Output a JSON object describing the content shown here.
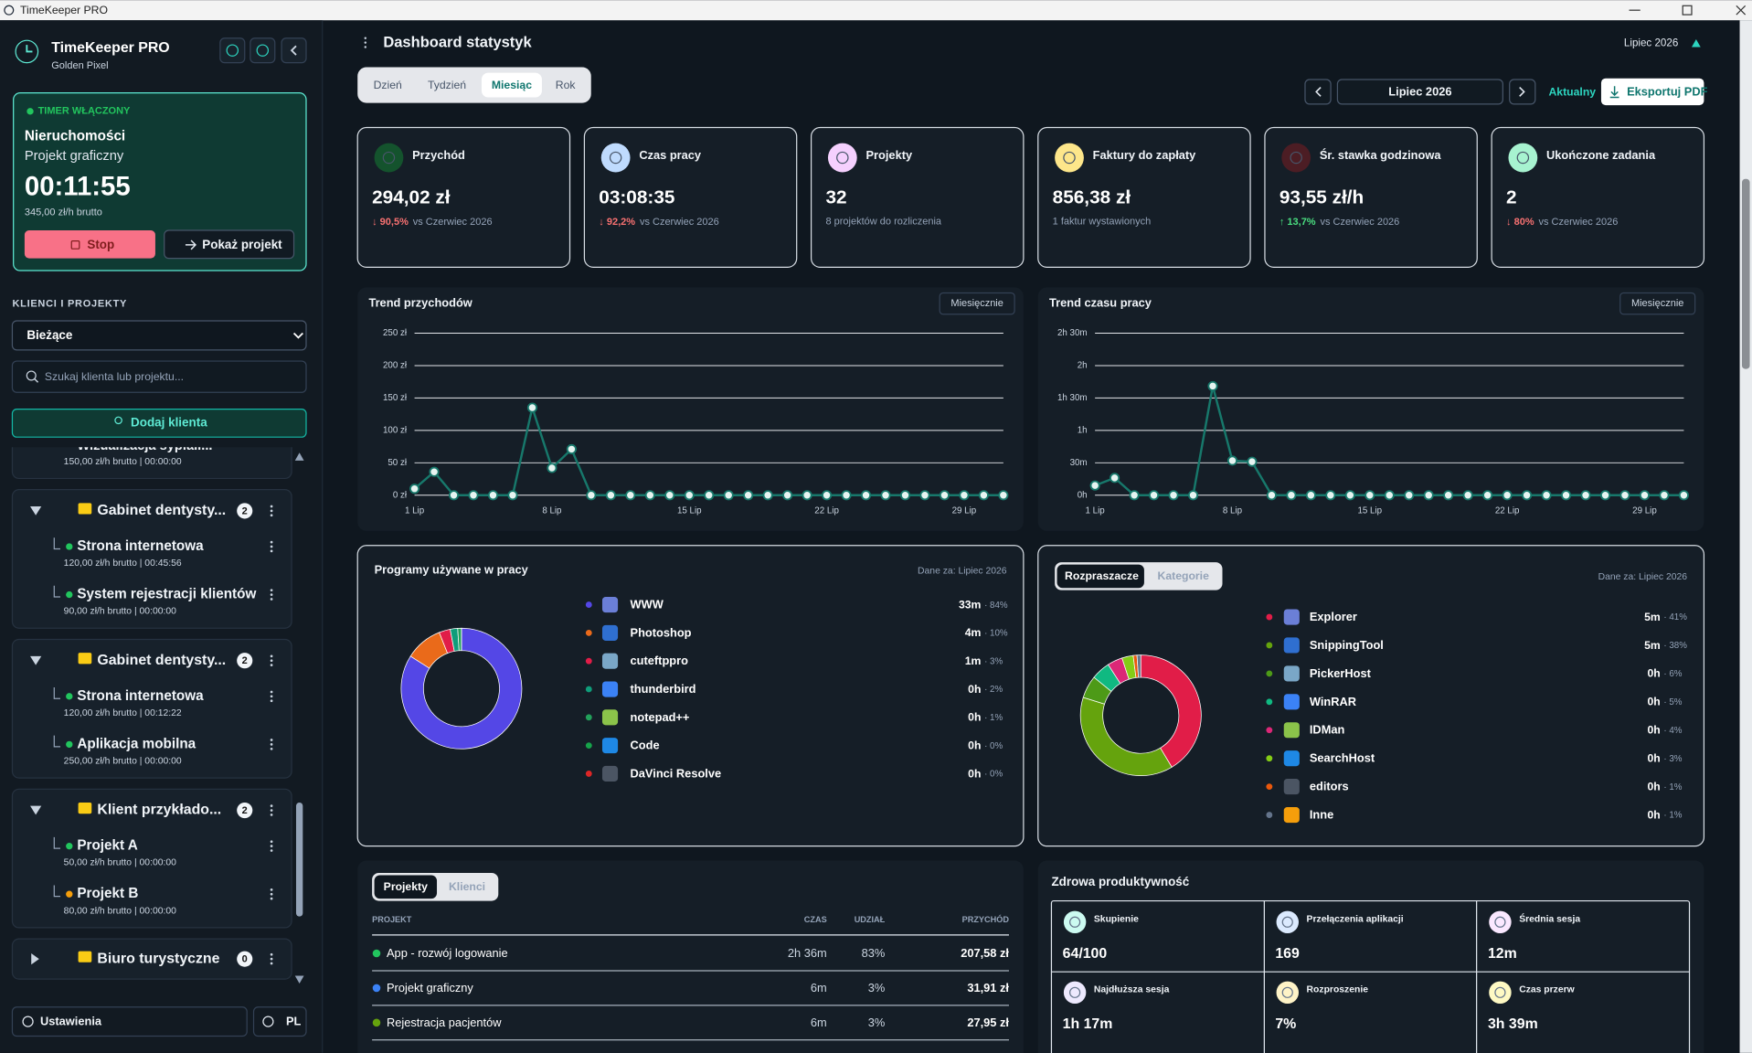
{
  "window_title": "TimeKeeper PRO",
  "sidebar": {
    "app_name": "TimeKeeper PRO",
    "workspace": "Golden Pixel",
    "timer": {
      "status": "TIMER WŁĄCZONY",
      "client": "Nieruchomości",
      "project": "Projekt graficzny",
      "elapsed": "00:11:55",
      "rate": "345,00 zł/h brutto",
      "stop": "Stop",
      "show_project": "Pokaż projekt"
    },
    "section_title": "KLIENCI I PROJEKTY",
    "filter": "Bieżące",
    "search_placeholder": "Szukaj klienta lub projektu...",
    "add_client": "Dodaj klienta",
    "partial_project": {
      "name": "Wizualizacja sypiali...",
      "meta": "150,00 zł/h brutto | 00:00:00"
    },
    "clients": [
      {
        "name": "Gabinet dentysty...",
        "count": 2,
        "projects": [
          {
            "name": "Strona internetowa",
            "meta": "120,00 zł/h brutto | 00:45:56",
            "color": "#22c55e"
          },
          {
            "name": "System rejestracji klientów",
            "meta": "90,00 zł/h brutto | 00:00:00",
            "color": "#22c55e"
          }
        ]
      },
      {
        "name": "Gabinet dentysty...",
        "count": 2,
        "projects": [
          {
            "name": "Strona internetowa",
            "meta": "120,00 zł/h brutto | 00:12:22",
            "color": "#22c55e"
          },
          {
            "name": "Aplikacja mobilna",
            "meta": "250,00 zł/h brutto | 00:00:00",
            "color": "#22c55e"
          }
        ]
      },
      {
        "name": "Klient przykłado...",
        "count": 2,
        "projects": [
          {
            "name": "Projekt A",
            "meta": "50,00 zł/h brutto | 00:00:00",
            "color": "#22c55e"
          },
          {
            "name": "Projekt B",
            "meta": "80,00 zł/h brutto | 00:00:00",
            "color": "#f59e0b"
          }
        ]
      },
      {
        "name": "Biuro turystyczne",
        "count": 0,
        "projects": []
      }
    ],
    "settings": "Ustawienia",
    "language": "PL"
  },
  "header": {
    "title": "Dashboard statystyk",
    "period": "Lipiec 2026",
    "tabs": [
      "Dzień",
      "Tydzień",
      "Miesiąc",
      "Rok"
    ],
    "active_tab": 2,
    "month": "Lipiec 2026",
    "current": "Aktualny",
    "export": "Eksportuj PDF"
  },
  "kpis": [
    {
      "label": "Przychód",
      "value": "294,02 zł",
      "change": "↓ 90,5%",
      "trend": "down",
      "comparison": "vs Czerwiec 2026",
      "icon_color": "#14532d"
    },
    {
      "label": "Czas pracy",
      "value": "03:08:35",
      "change": "↓ 92,2%",
      "trend": "down",
      "comparison": "vs Czerwiec 2026",
      "icon_color": "#bfdbfe"
    },
    {
      "label": "Projekty",
      "value": "32",
      "note": "8 projektów do rozliczenia",
      "icon_color": "#f5d0fe"
    },
    {
      "label": "Faktury do zapłaty",
      "value": "856,38 zł",
      "note": "1 faktur wystawionych",
      "icon_color": "#fde68a"
    },
    {
      "label": "Śr. stawka godzinowa",
      "value": "93,55 zł/h",
      "change": "↑ 13,7%",
      "trend": "up",
      "comparison": "vs Czerwiec 2026",
      "icon_color": "#4c1d24"
    },
    {
      "label": "Ukończone zadania",
      "value": "2",
      "change": "↓ 80%",
      "trend": "down",
      "comparison": "vs Czerwiec 2026",
      "icon_color": "#a7f3d0"
    }
  ],
  "chart_data": [
    {
      "type": "line",
      "title": "Trend przychodów",
      "period_button": "Miesięcznie",
      "categories": [
        "1 Lip",
        null,
        null,
        null,
        null,
        null,
        null,
        "8 Lip",
        null,
        null,
        null,
        null,
        null,
        null,
        "15 Lip",
        null,
        null,
        null,
        null,
        null,
        null,
        "22 Lip",
        null,
        null,
        null,
        null,
        null,
        null,
        "29 Lip",
        null,
        null
      ],
      "values": [
        10,
        36,
        0,
        0,
        0,
        0,
        135,
        42,
        71,
        0,
        0,
        0,
        0,
        0,
        0,
        0,
        0,
        0,
        0,
        0,
        0,
        0,
        0,
        0,
        0,
        0,
        0,
        0,
        0,
        0,
        0
      ],
      "color": "#17786b",
      "ylim": [
        0,
        250
      ],
      "yticks": [
        {
          "value": 0,
          "label": "0 zł"
        },
        {
          "value": 50,
          "label": "50 zł"
        },
        {
          "value": 100,
          "label": "100 zł"
        },
        {
          "value": 150,
          "label": "150 zł"
        },
        {
          "value": 200,
          "label": "200 zł"
        },
        {
          "value": 250,
          "label": "250 zł"
        }
      ],
      "grid": true
    },
    {
      "type": "line",
      "title": "Trend czasu pracy",
      "period_button": "Miesięcznie",
      "categories": [
        "1 Lip",
        null,
        null,
        null,
        null,
        null,
        null,
        "8 Lip",
        null,
        null,
        null,
        null,
        null,
        null,
        "15 Lip",
        null,
        null,
        null,
        null,
        null,
        null,
        "22 Lip",
        null,
        null,
        null,
        null,
        null,
        null,
        "29 Lip",
        null,
        null
      ],
      "values": [
        9,
        16,
        0,
        0,
        0,
        0,
        101,
        32,
        31,
        0,
        0,
        0,
        0,
        0,
        0,
        0,
        0,
        0,
        0,
        0,
        0,
        0,
        0,
        0,
        0,
        0,
        0,
        0,
        0,
        0,
        0
      ],
      "color": "#17786b",
      "ylim": [
        0,
        150
      ],
      "yticks": [
        {
          "value": 0,
          "label": "0h"
        },
        {
          "value": 30,
          "label": "30m"
        },
        {
          "value": 60,
          "label": "1h"
        },
        {
          "value": 90,
          "label": "1h 30m"
        },
        {
          "value": 120,
          "label": "2h"
        },
        {
          "value": 150,
          "label": "2h 30m"
        }
      ],
      "grid": true
    },
    {
      "type": "pie",
      "donut": true,
      "title": "Programy używane w pracy",
      "subtitle": "Dane za: Lipiec 2026",
      "categories": [
        "WWW",
        "Photoshop",
        "cuteftppro",
        "thunderbird",
        "notepad++",
        "Code",
        "DaVinci Resolve"
      ],
      "values": [
        84,
        10,
        3,
        2,
        1,
        0,
        0
      ],
      "value_labels": [
        "84%",
        "10%",
        "3%",
        "2%",
        "1%",
        "0%",
        "0%"
      ],
      "durations": [
        "33m",
        "4m",
        "1m",
        "0h",
        "0h",
        "0h",
        "0h"
      ],
      "colors": [
        "#5447e6",
        "#ea6a1a",
        "#e11d48",
        "#0f9d7a",
        "#22a05a",
        "#16a34a",
        "#dc2626"
      ]
    },
    {
      "type": "pie",
      "donut": true,
      "tabs": [
        "Rozpraszacze",
        "Kategorie"
      ],
      "active_tab": 0,
      "subtitle": "Dane za: Lipiec 2026",
      "categories": [
        "Explorer",
        "SnippingTool",
        "PickerHost",
        "WinRAR",
        "IDMan",
        "SearchHost",
        "editors",
        "Inne"
      ],
      "values": [
        41,
        38,
        6,
        5,
        4,
        3,
        1,
        1
      ],
      "value_labels": [
        "41%",
        "38%",
        "6%",
        "5%",
        "4%",
        "3%",
        "1%",
        "1%"
      ],
      "durations": [
        "5m",
        "5m",
        "0h",
        "0h",
        "0h",
        "0h",
        "0h",
        "0h"
      ],
      "colors": [
        "#e11d48",
        "#65a30d",
        "#4d9a17",
        "#10b981",
        "#db2777",
        "#84cc16",
        "#ea580c",
        "#64748b"
      ]
    }
  ],
  "table": {
    "tabs": [
      "Projekty",
      "Klienci"
    ],
    "active_tab": 0,
    "columns": [
      "PROJEKT",
      "CZAS",
      "UDZIAŁ",
      "PRZYCHÓD"
    ],
    "rows": [
      [
        "App - rozwój logowanie",
        "2h 36m",
        "83%",
        "207,58 zł"
      ],
      [
        "Projekt graficzny",
        "6m",
        "3%",
        "31,91 zł"
      ],
      [
        "Rejestracja pacjentów",
        "6m",
        "3%",
        "27,95 zł"
      ]
    ],
    "row_colors": [
      "#22c55e",
      "#3b82f6",
      "#65a30d"
    ]
  },
  "productivity": {
    "title": "Zdrowa produktywność",
    "metrics": [
      {
        "label": "Skupienie",
        "value": "64/100"
      },
      {
        "label": "Przełączenia aplikacji",
        "value": "169"
      },
      {
        "label": "Średnia sesja",
        "value": "12m"
      },
      {
        "label": "Najdłuższa sesja",
        "value": "1h 17m"
      },
      {
        "label": "Rozproszenie",
        "value": "7%"
      },
      {
        "label": "Czas przerw",
        "value": "3h 39m"
      }
    ]
  }
}
